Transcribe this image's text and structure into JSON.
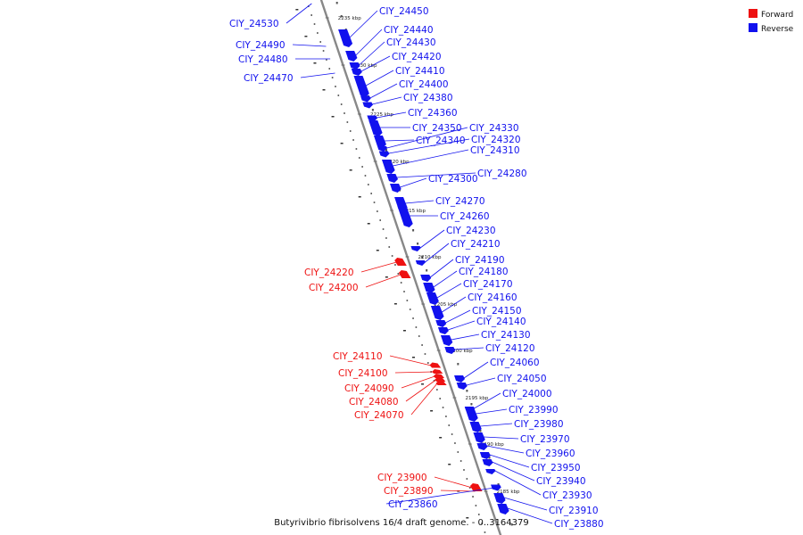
{
  "caption": "Butyrivibrio fibrisolvens 16/4 draft genome. - 0..3164379",
  "legend": [
    {
      "label": "Forward",
      "color": "#ee1111"
    },
    {
      "label": "Reverse",
      "color": "#1111ee"
    }
  ],
  "colors": {
    "forward": "#ee1111",
    "reverse": "#1111ee",
    "axis": "#888888"
  },
  "ticks": [
    "2235 kbp",
    "2230 kbp",
    "2225 kbp",
    "2220 kbp",
    "2215 kbp",
    "2210 kbp",
    "2205 kbp",
    "2200 kbp",
    "2195 kbp",
    "2190 kbp",
    "2185 kbp"
  ],
  "genes": [
    {
      "name": "CIY_24530",
      "strand": "reverse"
    },
    {
      "name": "CIY_24490",
      "strand": "reverse"
    },
    {
      "name": "CIY_24480",
      "strand": "reverse"
    },
    {
      "name": "CIY_24470",
      "strand": "reverse"
    },
    {
      "name": "CIY_24450",
      "strand": "reverse"
    },
    {
      "name": "CIY_24440",
      "strand": "reverse"
    },
    {
      "name": "CIY_24430",
      "strand": "reverse"
    },
    {
      "name": "CIY_24420",
      "strand": "reverse"
    },
    {
      "name": "CIY_24410",
      "strand": "reverse"
    },
    {
      "name": "CIY_24400",
      "strand": "reverse"
    },
    {
      "name": "CIY_24380",
      "strand": "reverse"
    },
    {
      "name": "CIY_24360",
      "strand": "reverse"
    },
    {
      "name": "CIY_24350",
      "strand": "reverse"
    },
    {
      "name": "CIY_24340",
      "strand": "reverse"
    },
    {
      "name": "CIY_24330",
      "strand": "reverse"
    },
    {
      "name": "CIY_24320",
      "strand": "reverse"
    },
    {
      "name": "CIY_24310",
      "strand": "reverse"
    },
    {
      "name": "CIY_24300",
      "strand": "reverse"
    },
    {
      "name": "CIY_24280",
      "strand": "reverse"
    },
    {
      "name": "CIY_24270",
      "strand": "reverse"
    },
    {
      "name": "CIY_24260",
      "strand": "reverse"
    },
    {
      "name": "CIY_24230",
      "strand": "reverse"
    },
    {
      "name": "CIY_24210",
      "strand": "reverse"
    },
    {
      "name": "CIY_24220",
      "strand": "forward"
    },
    {
      "name": "CIY_24200",
      "strand": "forward"
    },
    {
      "name": "CIY_24190",
      "strand": "reverse"
    },
    {
      "name": "CIY_24180",
      "strand": "reverse"
    },
    {
      "name": "CIY_24170",
      "strand": "reverse"
    },
    {
      "name": "CIY_24160",
      "strand": "reverse"
    },
    {
      "name": "CIY_24150",
      "strand": "reverse"
    },
    {
      "name": "CIY_24140",
      "strand": "reverse"
    },
    {
      "name": "CIY_24130",
      "strand": "reverse"
    },
    {
      "name": "CIY_24120",
      "strand": "reverse"
    },
    {
      "name": "CIY_24110",
      "strand": "forward"
    },
    {
      "name": "CIY_24100",
      "strand": "forward"
    },
    {
      "name": "CIY_24090",
      "strand": "forward"
    },
    {
      "name": "CIY_24080",
      "strand": "forward"
    },
    {
      "name": "CIY_24070",
      "strand": "forward"
    },
    {
      "name": "CIY_24060",
      "strand": "reverse"
    },
    {
      "name": "CIY_24050",
      "strand": "reverse"
    },
    {
      "name": "CIY_24000",
      "strand": "reverse"
    },
    {
      "name": "CIY_23990",
      "strand": "reverse"
    },
    {
      "name": "CIY_23980",
      "strand": "reverse"
    },
    {
      "name": "CIY_23970",
      "strand": "reverse"
    },
    {
      "name": "CIY_23960",
      "strand": "reverse"
    },
    {
      "name": "CIY_23950",
      "strand": "reverse"
    },
    {
      "name": "CIY_23940",
      "strand": "reverse"
    },
    {
      "name": "CIY_23930",
      "strand": "reverse"
    },
    {
      "name": "CIY_23910",
      "strand": "reverse"
    },
    {
      "name": "CIY_23880",
      "strand": "reverse"
    },
    {
      "name": "CIY_23900",
      "strand": "forward"
    },
    {
      "name": "CIY_23890",
      "strand": "forward"
    },
    {
      "name": "CIY_23860",
      "strand": "reverse"
    }
  ]
}
